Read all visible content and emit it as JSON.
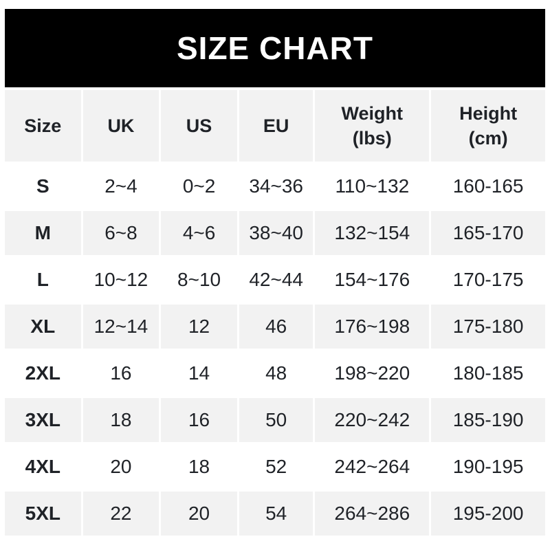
{
  "page_title": "SIZE CHART",
  "headers": {
    "size": "Size",
    "uk": "UK",
    "us": "US",
    "eu": "EU",
    "weight": "Weight\n(lbs)",
    "height": "Height\n(cm)"
  },
  "chart_data": {
    "type": "table",
    "title": "SIZE CHART",
    "columns": [
      "Size",
      "UK",
      "US",
      "EU",
      "Weight (lbs)",
      "Height (cm)"
    ],
    "rows": [
      {
        "size": "S",
        "uk": "2~4",
        "us": "0~2",
        "eu": "34~36",
        "weight": "110~132",
        "height": "160-165"
      },
      {
        "size": "M",
        "uk": "6~8",
        "us": "4~6",
        "eu": "38~40",
        "weight": "132~154",
        "height": "165-170"
      },
      {
        "size": "L",
        "uk": "10~12",
        "us": "8~10",
        "eu": "42~44",
        "weight": "154~176",
        "height": "170-175"
      },
      {
        "size": "XL",
        "uk": "12~14",
        "us": "12",
        "eu": "46",
        "weight": "176~198",
        "height": "175-180"
      },
      {
        "size": "2XL",
        "uk": "16",
        "us": "14",
        "eu": "48",
        "weight": "198~220",
        "height": "180-185"
      },
      {
        "size": "3XL",
        "uk": "18",
        "us": "16",
        "eu": "50",
        "weight": "220~242",
        "height": "185-190"
      },
      {
        "size": "4XL",
        "uk": "20",
        "us": "18",
        "eu": "52",
        "weight": "242~264",
        "height": "190-195"
      },
      {
        "size": "5XL",
        "uk": "22",
        "us": "20",
        "eu": "54",
        "weight": "264~286",
        "height": "195-200"
      }
    ]
  },
  "colors": {
    "banner_bg": "#000000",
    "banner_text": "#ffffff",
    "row_alt_bg": "#f2f2f2",
    "text": "#1f2227",
    "page_bg": "#ffffff"
  }
}
